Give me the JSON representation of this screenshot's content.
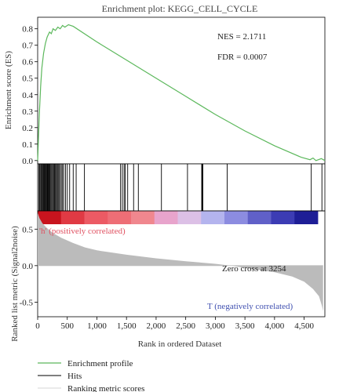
{
  "chart_data": {
    "type": "line",
    "title": "Enrichment plot: KEGG_CELL_CYCLE",
    "xlabel": "Rank in ordered Dataset",
    "xlim": [
      0,
      4850
    ],
    "x_ticks": [
      0,
      500,
      1000,
      1500,
      2000,
      2500,
      3000,
      3500,
      4000,
      4500
    ],
    "x_tick_labels": [
      "0",
      "500",
      "1,000",
      "1,500",
      "2,000",
      "2,500",
      "3,000",
      "3,500",
      "4,000",
      "4,500"
    ],
    "enrichment": {
      "ylabel": "Enrichment score (ES)",
      "ylim": [
        -0.02,
        0.87
      ],
      "y_ticks": [
        0.0,
        0.1,
        0.2,
        0.3,
        0.4,
        0.5,
        0.6,
        0.7,
        0.8
      ],
      "y_tick_labels": [
        "0.0",
        "0.1",
        "0.2",
        "0.3",
        "0.4",
        "0.5",
        "0.6",
        "0.7",
        "0.8"
      ],
      "series": [
        {
          "name": "Enrichment profile",
          "color": "#5cb85c",
          "points": [
            [
              0,
              0.0
            ],
            [
              5,
              0.05
            ],
            [
              15,
              0.15
            ],
            [
              30,
              0.3
            ],
            [
              50,
              0.45
            ],
            [
              70,
              0.56
            ],
            [
              100,
              0.65
            ],
            [
              130,
              0.71
            ],
            [
              160,
              0.75
            ],
            [
              200,
              0.78
            ],
            [
              230,
              0.77
            ],
            [
              260,
              0.8
            ],
            [
              300,
              0.79
            ],
            [
              340,
              0.81
            ],
            [
              380,
              0.8
            ],
            [
              420,
              0.82
            ],
            [
              460,
              0.81
            ],
            [
              520,
              0.825
            ],
            [
              600,
              0.815
            ],
            [
              1000,
              0.72
            ],
            [
              1500,
              0.61
            ],
            [
              2000,
              0.5
            ],
            [
              2500,
              0.39
            ],
            [
              3000,
              0.28
            ],
            [
              3500,
              0.18
            ],
            [
              4000,
              0.09
            ],
            [
              4450,
              0.02
            ],
            [
              4600,
              0.005
            ],
            [
              4650,
              0.015
            ],
            [
              4700,
              0.0
            ],
            [
              4790,
              0.012
            ],
            [
              4850,
              0.0
            ]
          ]
        }
      ],
      "annotations": [
        {
          "text": "NES = 2.1711"
        },
        {
          "text": "FDR = 0.0007"
        }
      ]
    },
    "hits": {
      "name": "Hits",
      "color": "#000000",
      "positions": [
        20,
        35,
        50,
        62,
        75,
        88,
        100,
        112,
        125,
        135,
        148,
        160,
        172,
        185,
        198,
        210,
        225,
        240,
        255,
        270,
        285,
        300,
        315,
        330,
        345,
        360,
        380,
        400,
        420,
        440,
        470,
        500,
        540,
        600,
        650,
        790,
        1400,
        1430,
        1460,
        1480,
        1520,
        1620,
        1700,
        2090,
        2530,
        2770,
        2780,
        2790,
        3200,
        4620,
        4800
      ]
    },
    "ranking_bar": {
      "colors": [
        "#c8141e",
        "#e03a44",
        "#ec5a64",
        "#ee6e76",
        "#f0878e",
        "#e8a4cc",
        "#dcc0e6",
        "#b4b4ee",
        "#8c8ce0",
        "#6060c8",
        "#3c3cb4",
        "#1e1e96"
      ],
      "positive_label": "'h' (positively correlated)",
      "negative_label": "T (negatively correlated)",
      "positive_label_color": "#e05060",
      "negative_label_color": "#4050b0"
    },
    "ranking": {
      "name": "Ranking metric scores",
      "ylabel": "Ranked list metric (Signal2noise)",
      "ylim": [
        -0.7,
        0.75
      ],
      "y_ticks": [
        0.5,
        0.0,
        -0.5
      ],
      "y_tick_labels": [
        "0.5",
        "0.0",
        "-0.5"
      ],
      "fill_color": "#bbbbbb",
      "zero_cross_label": "Zero cross at 3254",
      "zero_cross": 3254,
      "curve": [
        [
          0,
          0.72
        ],
        [
          30,
          0.65
        ],
        [
          80,
          0.58
        ],
        [
          150,
          0.52
        ],
        [
          250,
          0.45
        ],
        [
          400,
          0.38
        ],
        [
          600,
          0.31
        ],
        [
          800,
          0.25
        ],
        [
          1000,
          0.21
        ],
        [
          1500,
          0.15
        ],
        [
          2000,
          0.1
        ],
        [
          2500,
          0.06
        ],
        [
          3000,
          0.025
        ],
        [
          3254,
          0.0
        ],
        [
          3500,
          -0.03
        ],
        [
          4000,
          -0.09
        ],
        [
          4300,
          -0.15
        ],
        [
          4500,
          -0.22
        ],
        [
          4650,
          -0.32
        ],
        [
          4750,
          -0.42
        ],
        [
          4800,
          -0.55
        ],
        [
          4820,
          -0.62
        ]
      ]
    },
    "legend": {
      "placement": "bottom-left",
      "entries": [
        {
          "label": "Enrichment profile",
          "color": "#5cb85c"
        },
        {
          "label": "Hits",
          "color": "#333333"
        },
        {
          "label": "Ranking metric scores",
          "color": "#dddddd"
        }
      ]
    }
  }
}
